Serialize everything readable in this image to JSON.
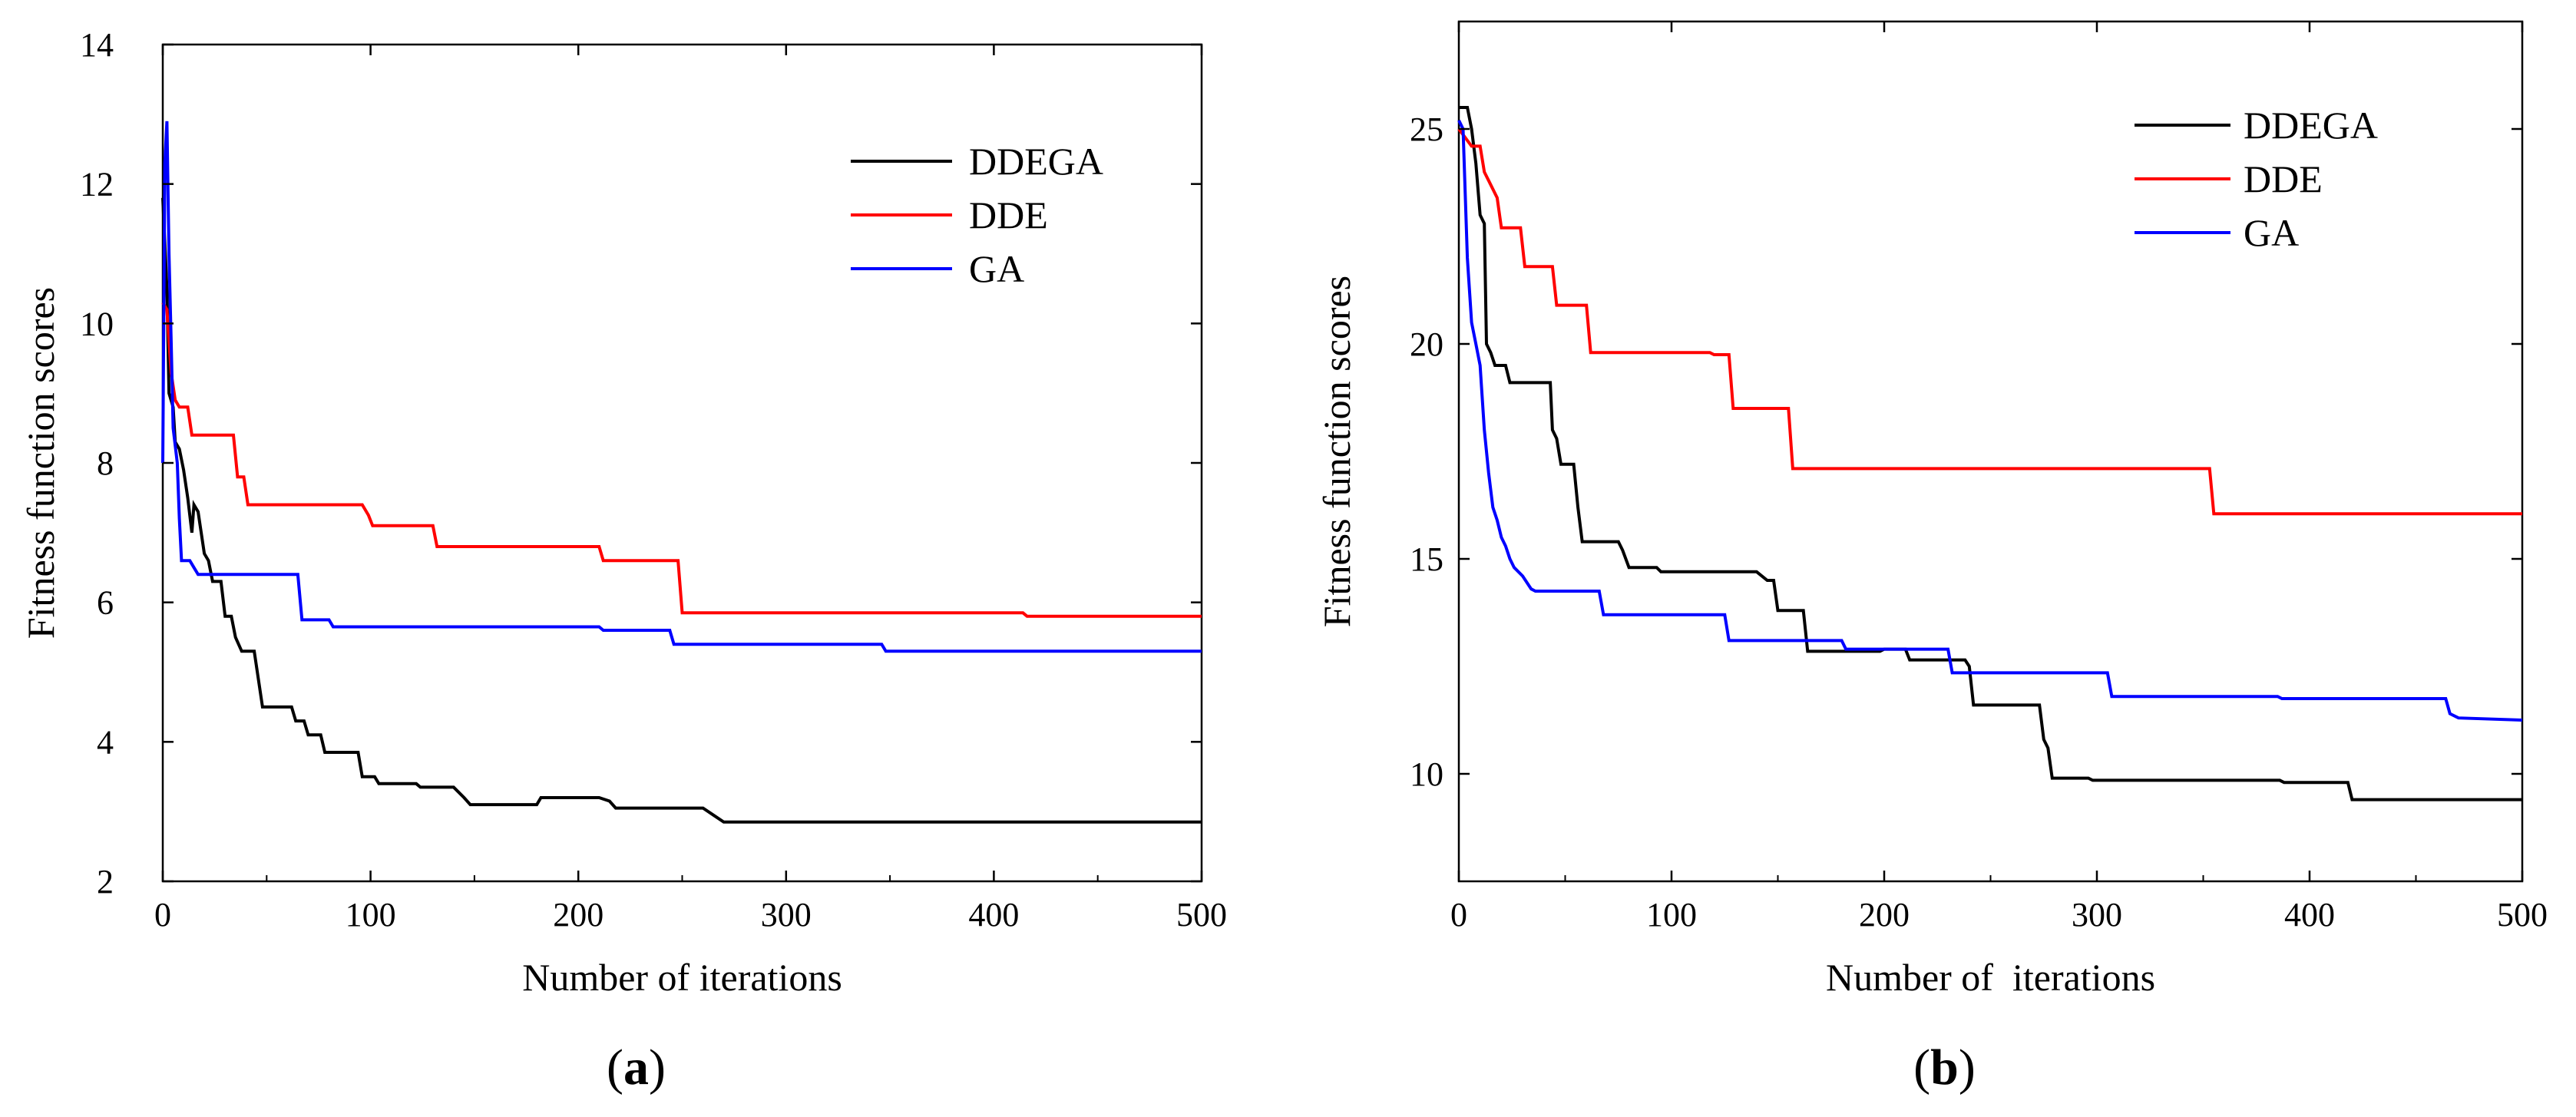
{
  "chart_data": [
    {
      "type": "line",
      "panel": "a",
      "caption_open": "(",
      "caption_letter": "a",
      "caption_close": ")",
      "xlabel": "Number of iterations",
      "ylabel": "Fitness function scores",
      "xlim": [
        0,
        500
      ],
      "ylim": [
        2,
        14
      ],
      "xticks": [
        0,
        100,
        200,
        300,
        400,
        500
      ],
      "yticks": [
        2,
        4,
        6,
        8,
        10,
        12,
        14
      ],
      "legend_position": "top-right",
      "series": [
        {
          "name": "DDEGA",
          "color": "#000000",
          "points": [
            [
              0,
              11.8
            ],
            [
              2,
              10.5
            ],
            [
              3,
              9.0
            ],
            [
              5,
              8.8
            ],
            [
              6,
              8.3
            ],
            [
              8,
              8.2
            ],
            [
              10,
              7.9
            ],
            [
              12,
              7.5
            ],
            [
              14,
              7.0
            ],
            [
              15,
              7.4
            ],
            [
              17,
              7.3
            ],
            [
              18,
              7.1
            ],
            [
              20,
              6.7
            ],
            [
              22,
              6.6
            ],
            [
              24,
              6.3
            ],
            [
              28,
              6.3
            ],
            [
              30,
              5.8
            ],
            [
              33,
              5.8
            ],
            [
              35,
              5.5
            ],
            [
              38,
              5.3
            ],
            [
              44,
              5.3
            ],
            [
              46,
              4.9
            ],
            [
              48,
              4.5
            ],
            [
              62,
              4.5
            ],
            [
              64,
              4.3
            ],
            [
              68,
              4.3
            ],
            [
              70,
              4.1
            ],
            [
              76,
              4.1
            ],
            [
              78,
              3.85
            ],
            [
              94,
              3.85
            ],
            [
              96,
              3.5
            ],
            [
              102,
              3.5
            ],
            [
              104,
              3.4
            ],
            [
              122,
              3.4
            ],
            [
              124,
              3.35
            ],
            [
              140,
              3.35
            ],
            [
              145,
              3.2
            ],
            [
              148,
              3.1
            ],
            [
              180,
              3.1
            ],
            [
              182,
              3.2
            ],
            [
              210,
              3.2
            ],
            [
              215,
              3.15
            ],
            [
              218,
              3.05
            ],
            [
              260,
              3.05
            ],
            [
              265,
              2.95
            ],
            [
              270,
              2.85
            ],
            [
              500,
              2.85
            ]
          ]
        },
        {
          "name": "DDE",
          "color": "#ff0000",
          "points": [
            [
              0,
              10.3
            ],
            [
              2,
              10.2
            ],
            [
              4,
              9.3
            ],
            [
              6,
              8.9
            ],
            [
              8,
              8.8
            ],
            [
              12,
              8.8
            ],
            [
              14,
              8.4
            ],
            [
              34,
              8.4
            ],
            [
              36,
              7.8
            ],
            [
              39,
              7.8
            ],
            [
              41,
              7.4
            ],
            [
              96,
              7.4
            ],
            [
              99,
              7.25
            ],
            [
              101,
              7.1
            ],
            [
              130,
              7.1
            ],
            [
              132,
              6.8
            ],
            [
              210,
              6.8
            ],
            [
              212,
              6.6
            ],
            [
              248,
              6.6
            ],
            [
              250,
              5.85
            ],
            [
              414,
              5.85
            ],
            [
              416,
              5.8
            ],
            [
              500,
              5.8
            ]
          ]
        },
        {
          "name": "GA",
          "color": "#0000ff",
          "points": [
            [
              0,
              8.0
            ],
            [
              1,
              12.3
            ],
            [
              2,
              12.9
            ],
            [
              3,
              11.0
            ],
            [
              4,
              9.8
            ],
            [
              5,
              8.5
            ],
            [
              7,
              8.0
            ],
            [
              8,
              7.2
            ],
            [
              9,
              6.6
            ],
            [
              13,
              6.6
            ],
            [
              15,
              6.5
            ],
            [
              17,
              6.4
            ],
            [
              65,
              6.4
            ],
            [
              67,
              5.75
            ],
            [
              80,
              5.75
            ],
            [
              82,
              5.65
            ],
            [
              210,
              5.65
            ],
            [
              212,
              5.6
            ],
            [
              244,
              5.6
            ],
            [
              246,
              5.4
            ],
            [
              346,
              5.4
            ],
            [
              348,
              5.3
            ],
            [
              500,
              5.3
            ]
          ]
        }
      ]
    },
    {
      "type": "line",
      "panel": "b",
      "caption_open": "(",
      "caption_letter": "b",
      "caption_close": ")",
      "xlabel": "Number of  iterations",
      "ylabel": "Fitness function scores",
      "xlim": [
        0,
        500
      ],
      "ylim": [
        7.5,
        27.5
      ],
      "xticks": [
        0,
        100,
        200,
        300,
        400,
        500
      ],
      "yticks": [
        10,
        15,
        20,
        25
      ],
      "legend_position": "top-right",
      "series": [
        {
          "name": "DDEGA",
          "color": "#000000",
          "points": [
            [
              0,
              25.5
            ],
            [
              4,
              25.5
            ],
            [
              6,
              25.0
            ],
            [
              8,
              24.2
            ],
            [
              10,
              23.0
            ],
            [
              12,
              22.8
            ],
            [
              13,
              20.0
            ],
            [
              15,
              19.8
            ],
            [
              17,
              19.5
            ],
            [
              22,
              19.5
            ],
            [
              24,
              19.1
            ],
            [
              43,
              19.1
            ],
            [
              44,
              18.0
            ],
            [
              46,
              17.8
            ],
            [
              48,
              17.2
            ],
            [
              54,
              17.2
            ],
            [
              56,
              16.2
            ],
            [
              58,
              15.4
            ],
            [
              75,
              15.4
            ],
            [
              77,
              15.2
            ],
            [
              80,
              14.8
            ],
            [
              93,
              14.8
            ],
            [
              95,
              14.7
            ],
            [
              140,
              14.7
            ],
            [
              145,
              14.5
            ],
            [
              148,
              14.5
            ],
            [
              150,
              13.8
            ],
            [
              162,
              13.8
            ],
            [
              164,
              12.85
            ],
            [
              198,
              12.85
            ],
            [
              200,
              12.9
            ],
            [
              210,
              12.9
            ],
            [
              212,
              12.65
            ],
            [
              238,
              12.65
            ],
            [
              240,
              12.5
            ],
            [
              242,
              11.6
            ],
            [
              273,
              11.6
            ],
            [
              275,
              10.8
            ],
            [
              277,
              10.6
            ],
            [
              279,
              9.9
            ],
            [
              296,
              9.9
            ],
            [
              298,
              9.85
            ],
            [
              386,
              9.85
            ],
            [
              388,
              9.8
            ],
            [
              418,
              9.8
            ],
            [
              420,
              9.4
            ],
            [
              500,
              9.4
            ]
          ]
        },
        {
          "name": "DDE",
          "color": "#ff0000",
          "points": [
            [
              0,
              25.0
            ],
            [
              3,
              24.8
            ],
            [
              6,
              24.6
            ],
            [
              10,
              24.6
            ],
            [
              12,
              24.0
            ],
            [
              14,
              23.8
            ],
            [
              18,
              23.4
            ],
            [
              20,
              22.7
            ],
            [
              29,
              22.7
            ],
            [
              31,
              21.8
            ],
            [
              44,
              21.8
            ],
            [
              46,
              20.9
            ],
            [
              60,
              20.9
            ],
            [
              62,
              19.8
            ],
            [
              118,
              19.8
            ],
            [
              120,
              19.75
            ],
            [
              127,
              19.75
            ],
            [
              129,
              18.5
            ],
            [
              155,
              18.5
            ],
            [
              157,
              17.1
            ],
            [
              353,
              17.1
            ],
            [
              355,
              16.05
            ],
            [
              500,
              16.05
            ]
          ]
        },
        {
          "name": "GA",
          "color": "#0000ff",
          "points": [
            [
              0,
              25.2
            ],
            [
              2,
              25.0
            ],
            [
              4,
              22.0
            ],
            [
              6,
              20.5
            ],
            [
              8,
              20.0
            ],
            [
              10,
              19.5
            ],
            [
              12,
              18.0
            ],
            [
              14,
              17.0
            ],
            [
              16,
              16.2
            ],
            [
              18,
              15.9
            ],
            [
              20,
              15.5
            ],
            [
              22,
              15.3
            ],
            [
              24,
              15.0
            ],
            [
              26,
              14.8
            ],
            [
              30,
              14.6
            ],
            [
              34,
              14.3
            ],
            [
              36,
              14.25
            ],
            [
              66,
              14.25
            ],
            [
              68,
              13.7
            ],
            [
              125,
              13.7
            ],
            [
              127,
              13.1
            ],
            [
              180,
              13.1
            ],
            [
              182,
              12.9
            ],
            [
              230,
              12.9
            ],
            [
              232,
              12.35
            ],
            [
              305,
              12.35
            ],
            [
              307,
              11.8
            ],
            [
              385,
              11.8
            ],
            [
              387,
              11.75
            ],
            [
              464,
              11.75
            ],
            [
              466,
              11.4
            ],
            [
              470,
              11.3
            ],
            [
              500,
              11.25
            ]
          ]
        }
      ]
    }
  ]
}
